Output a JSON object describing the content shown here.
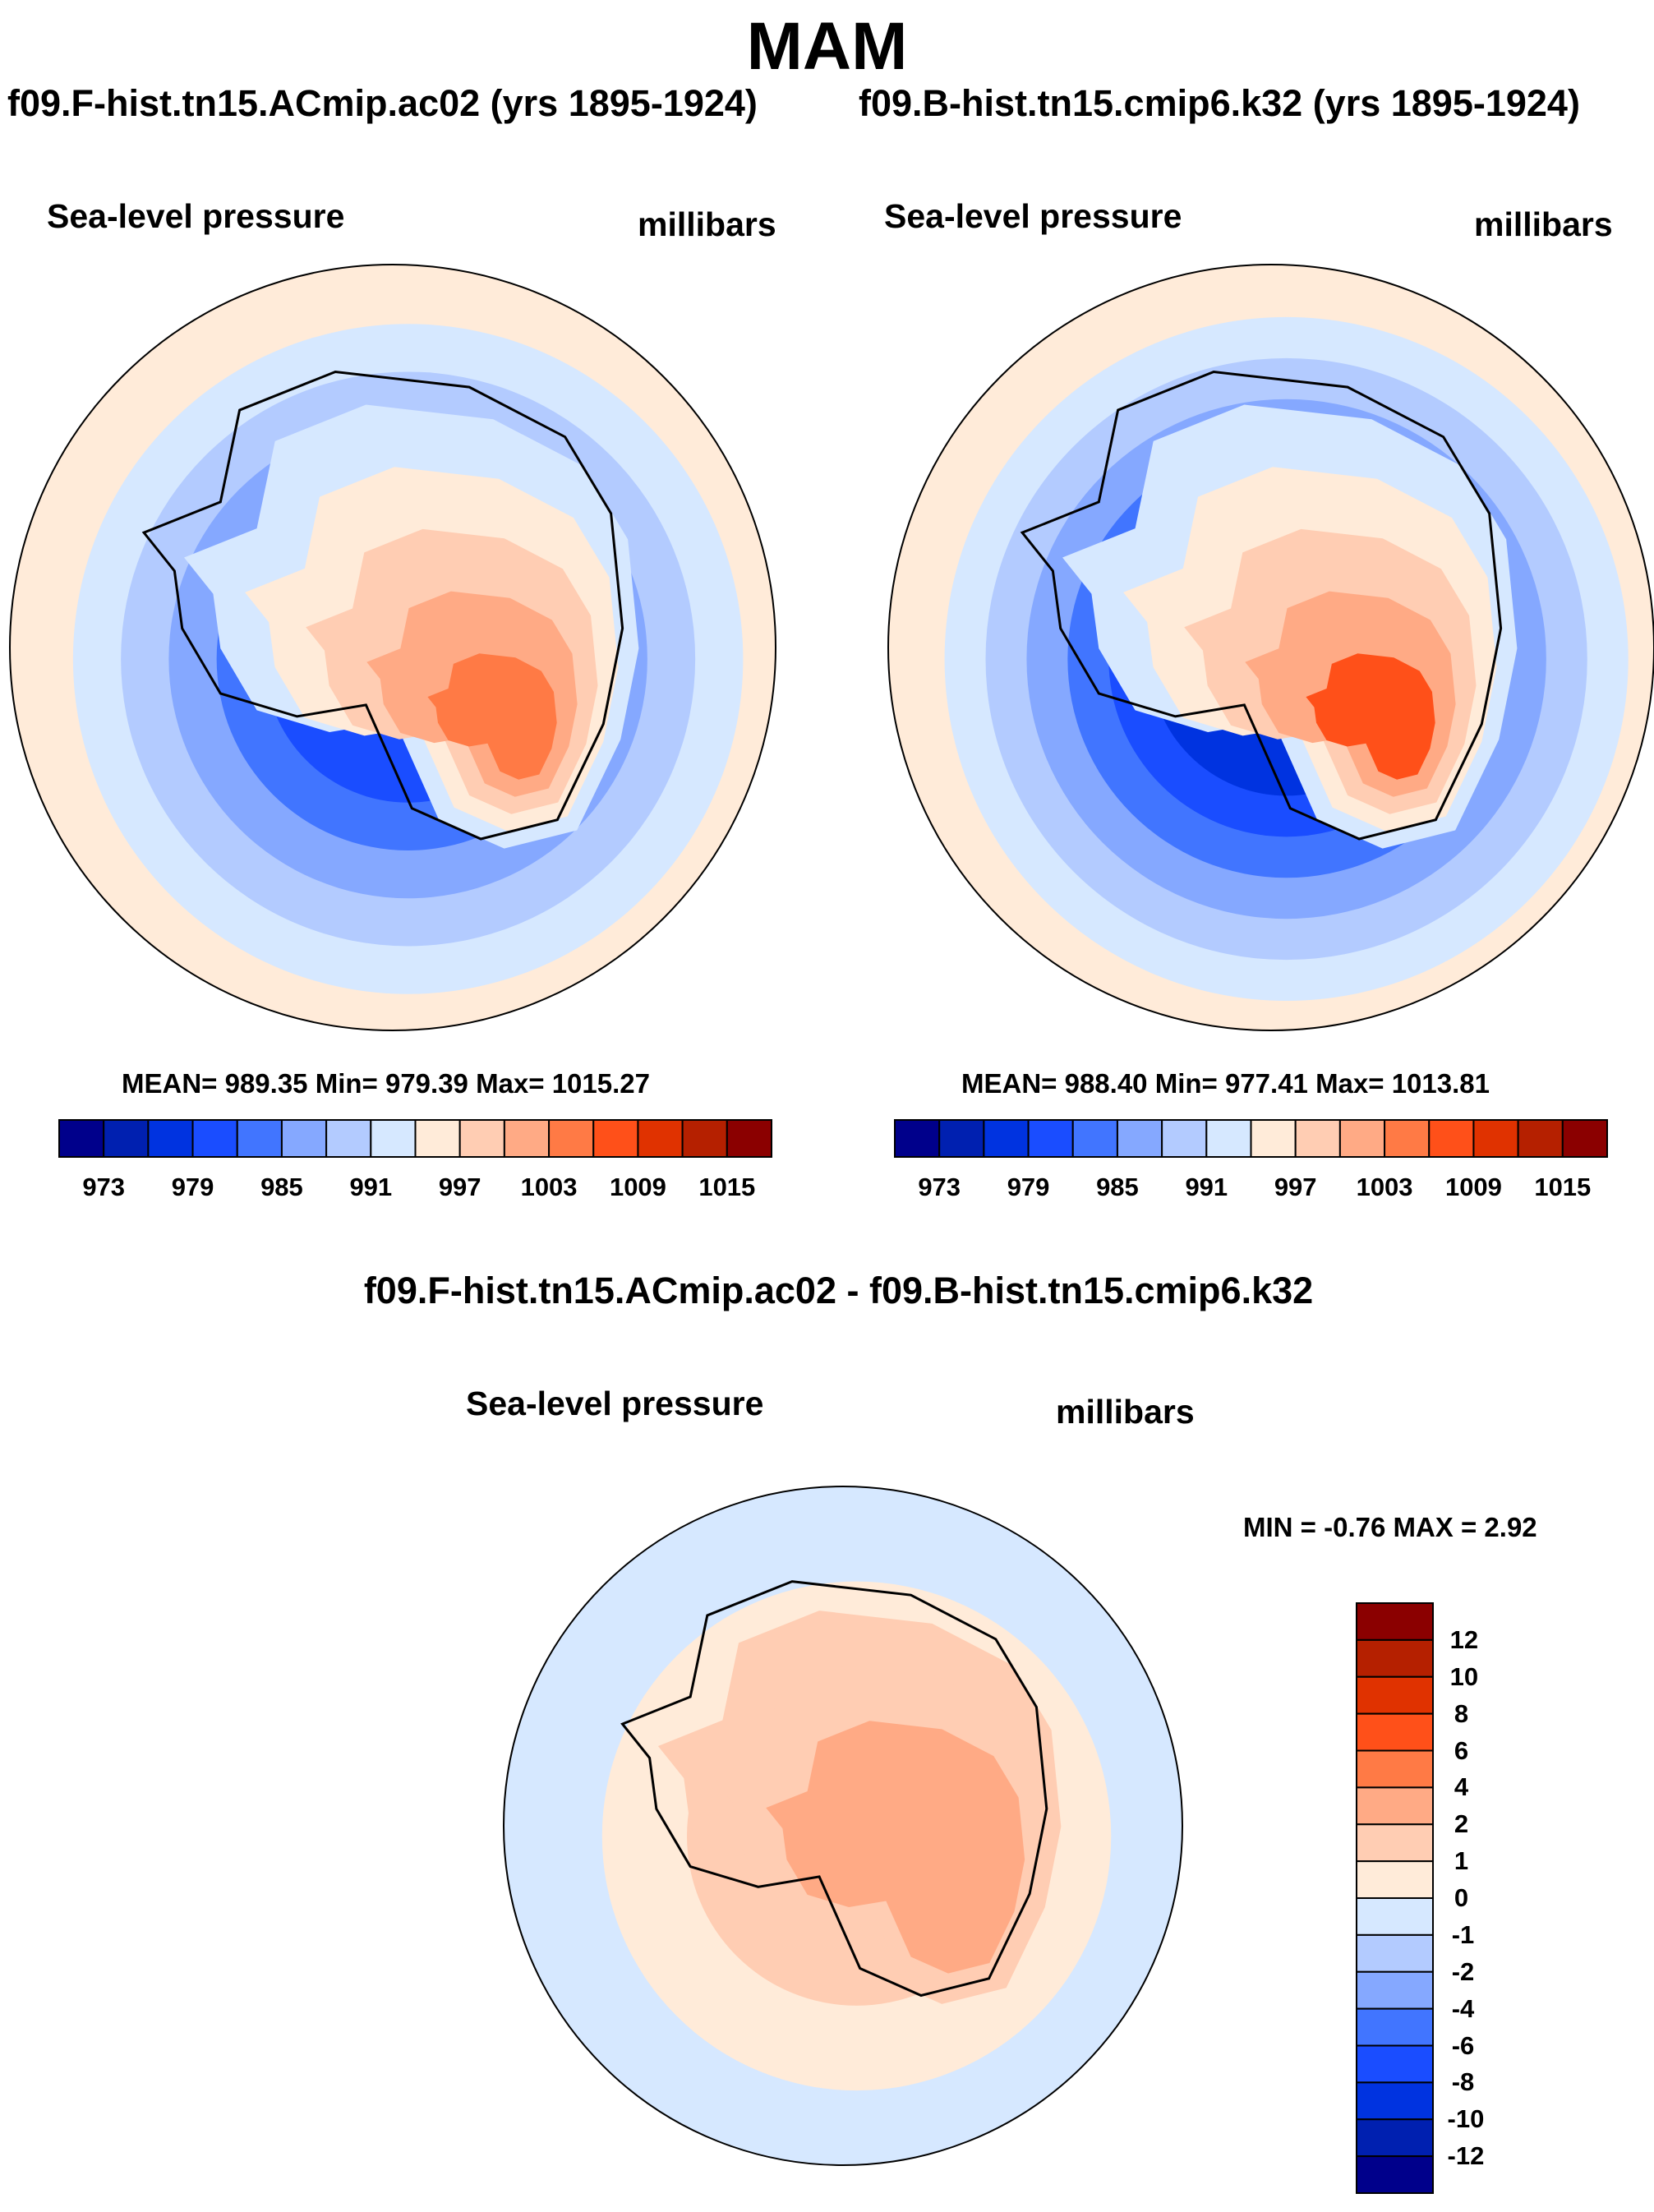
{
  "title": "MAM",
  "colors": [
    "#00008b",
    "#0020b0",
    "#0033e0",
    "#1a4dff",
    "#4175ff",
    "#85a8ff",
    "#b3cbff",
    "#d6e8ff",
    "#ffebd9",
    "#ffcdb3",
    "#ffaa85",
    "#ff7a45",
    "#ff5019",
    "#e03200",
    "#b52000",
    "#8b0000"
  ],
  "chart_data": [
    {
      "type": "heatmap",
      "title": "f09.F-hist.tn15.ACmip.ac02 (yrs 1895-1924)",
      "left_label": "Sea-level pressure",
      "right_label": "millibars",
      "projection": "south polar stereographic",
      "stats": "MEAN= 989.35  Min= 979.39  Max= 1015.27",
      "mean": 989.35,
      "min": 979.39,
      "max": 1015.27,
      "colorbar_ticks": [
        "973",
        "979",
        "985",
        "991",
        "997",
        "1003",
        "1009",
        "1015"
      ]
    },
    {
      "type": "heatmap",
      "title": "f09.B-hist.tn15.cmip6.k32 (yrs 1895-1924)",
      "left_label": "Sea-level pressure",
      "right_label": "millibars",
      "projection": "south polar stereographic",
      "stats": "MEAN= 988.40  Min= 977.41  Max= 1013.81",
      "mean": 988.4,
      "min": 977.41,
      "max": 1013.81,
      "colorbar_ticks": [
        "973",
        "979",
        "985",
        "991",
        "997",
        "1003",
        "1009",
        "1015"
      ]
    },
    {
      "type": "heatmap",
      "title": "f09.F-hist.tn15.ACmip.ac02 - f09.B-hist.tn15.cmip6.k32",
      "left_label": "Sea-level pressure",
      "right_label": "millibars",
      "projection": "south polar stereographic",
      "stats": "MIN =  -0.76 MAX =   2.92",
      "min": -0.76,
      "max": 2.92,
      "colorbar_ticks": [
        "12",
        "10",
        "8",
        "6",
        "4",
        "2",
        "1",
        "0",
        "-1",
        "-2",
        "-4",
        "-6",
        "-8",
        "-10",
        "-12"
      ]
    }
  ]
}
